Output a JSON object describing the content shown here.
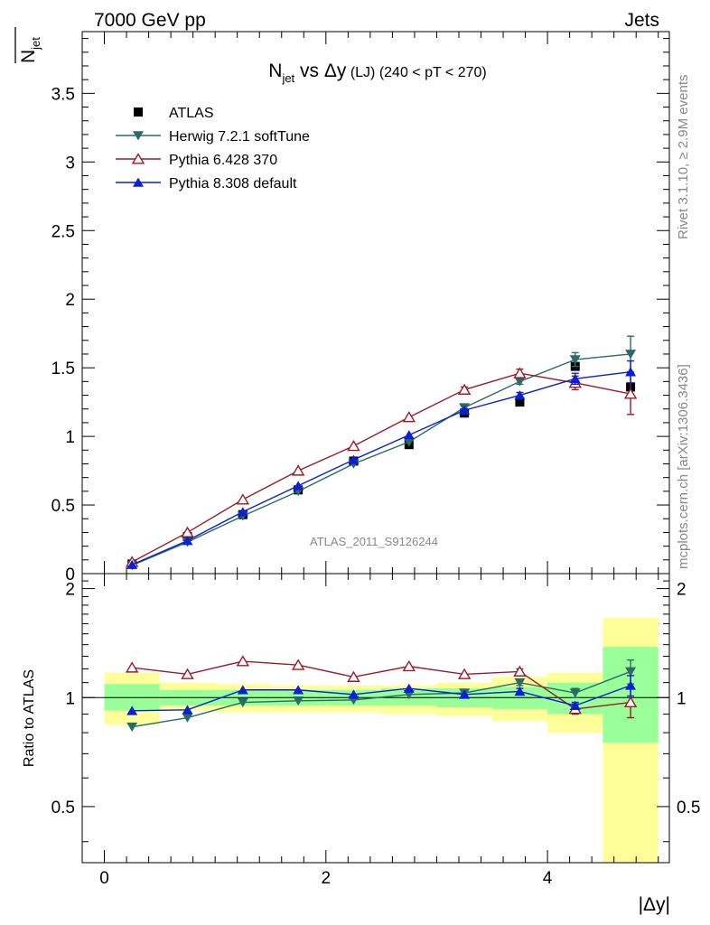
{
  "header": {
    "left": "7000 GeV pp",
    "right": "Jets"
  },
  "side_labels": {
    "rivet": "Rivet 3.1.10, ≥ 2.9M events",
    "mcplots": "mcplots.cern.ch [arXiv:1306.3436]"
  },
  "chart_data": [
    {
      "type": "scatter",
      "panel": "main",
      "title": "N_jet vs Δy (LJ) (240 < pT < 270)",
      "title_parts": {
        "n": "N",
        "sub": "jet",
        "vs": " vs ",
        "dy": "Δy",
        "lj": " (LJ) ",
        "cut": "(240 < pT < 270)"
      },
      "ylabel": "N̄_jet",
      "ylabel_parts": {
        "n": "N",
        "sub": "jet"
      },
      "xlabel": "",
      "watermark": "ATLAS_2011_S9126244",
      "xlim": [
        -0.2,
        5.1
      ],
      "ylim": [
        0,
        3.95
      ],
      "yticks": [
        "0",
        "0.5",
        "1",
        "1.5",
        "2",
        "2.5",
        "3",
        "3.5"
      ],
      "legend_position": "top-left",
      "x": [
        0.25,
        0.75,
        1.25,
        1.75,
        2.25,
        2.75,
        3.25,
        3.75,
        4.25,
        4.75
      ],
      "series": [
        {
          "name": "ATLAS",
          "marker": "square",
          "color": "#000000",
          "values": [
            0.07,
            0.27,
            0.43,
            0.61,
            0.82,
            0.94,
            1.17,
            1.25,
            1.51,
            1.36
          ],
          "errors": [
            0,
            0,
            0,
            0,
            0,
            0,
            0,
            0,
            0.02,
            0.02
          ]
        },
        {
          "name": "Herwig 7.2.1 softTune",
          "marker": "triangle-down",
          "color": "#2a6b66",
          "values": [
            0.06,
            0.23,
            0.42,
            0.6,
            0.8,
            0.96,
            1.21,
            1.4,
            1.56,
            1.6
          ],
          "errors": [
            0,
            0,
            0,
            0,
            0,
            0,
            0,
            0.02,
            0.05,
            0.13
          ]
        },
        {
          "name": "Pythia 6.428 370",
          "marker": "triangle-up-open",
          "color": "#9b1b2a",
          "values": [
            0.085,
            0.3,
            0.54,
            0.75,
            0.93,
            1.14,
            1.34,
            1.46,
            1.39,
            1.31
          ],
          "errors": [
            0,
            0,
            0,
            0,
            0,
            0,
            0.02,
            0.03,
            0.05,
            0.15
          ]
        },
        {
          "name": "Pythia 8.308 default",
          "marker": "triangle-up",
          "color": "#0a1fd6",
          "values": [
            0.065,
            0.24,
            0.45,
            0.64,
            0.83,
            1.01,
            1.19,
            1.3,
            1.42,
            1.47
          ],
          "errors": [
            0,
            0,
            0,
            0,
            0,
            0,
            0.01,
            0.02,
            0.04,
            0.08
          ]
        }
      ]
    },
    {
      "type": "scatter",
      "panel": "ratio",
      "ylabel": "Ratio to ATLAS",
      "xlabel": "|Δy|",
      "xlim": [
        -0.2,
        5.1
      ],
      "ylim": [
        0.35,
        2.2
      ],
      "xticks": [
        "0",
        "2",
        "4"
      ],
      "yticks": [
        "0.5",
        "1",
        "2"
      ],
      "bands": {
        "edges": [
          0,
          0.5,
          1.0,
          1.5,
          2.0,
          2.5,
          3.0,
          3.5,
          4.0,
          4.5,
          5.0
        ],
        "yellow": [
          [
            0.84,
            1.17
          ],
          [
            0.92,
            1.1
          ],
          [
            0.91,
            1.09
          ],
          [
            0.91,
            1.08
          ],
          [
            0.91,
            1.08
          ],
          [
            0.9,
            1.08
          ],
          [
            0.89,
            1.1
          ],
          [
            0.86,
            1.14
          ],
          [
            0.8,
            1.17
          ],
          [
            0.35,
            1.66
          ]
        ],
        "green": [
          [
            0.92,
            1.09
          ],
          [
            0.95,
            1.05
          ],
          [
            0.95,
            1.05
          ],
          [
            0.95,
            1.05
          ],
          [
            0.95,
            1.05
          ],
          [
            0.95,
            1.06
          ],
          [
            0.94,
            1.06
          ],
          [
            0.93,
            1.07
          ],
          [
            0.9,
            1.1
          ],
          [
            0.75,
            1.38
          ]
        ]
      },
      "x": [
        0.25,
        0.75,
        1.25,
        1.75,
        2.25,
        2.75,
        3.25,
        3.75,
        4.25,
        4.75
      ],
      "series": [
        {
          "name": "Herwig 7.2.1 softTune",
          "marker": "triangle-down",
          "color": "#2a6b66",
          "values": [
            0.83,
            0.88,
            0.97,
            0.98,
            0.985,
            1.02,
            1.03,
            1.1,
            1.03,
            1.18
          ],
          "errors": [
            0,
            0,
            0,
            0,
            0,
            0,
            0,
            0.02,
            0.03,
            0.09
          ]
        },
        {
          "name": "Pythia 6.428 370",
          "marker": "triangle-up-open",
          "color": "#9b1b2a",
          "values": [
            1.21,
            1.16,
            1.26,
            1.23,
            1.14,
            1.22,
            1.16,
            1.18,
            0.93,
            0.97
          ],
          "errors": [
            0,
            0,
            0,
            0,
            0,
            0,
            0,
            0.02,
            0.03,
            0.09
          ]
        },
        {
          "name": "Pythia 8.308 default",
          "marker": "triangle-up",
          "color": "#0a1fd6",
          "values": [
            0.92,
            0.925,
            1.05,
            1.05,
            1.02,
            1.06,
            1.02,
            1.04,
            0.95,
            1.08
          ],
          "errors": [
            0,
            0,
            0,
            0,
            0,
            0,
            0,
            0.02,
            0.02,
            0.07
          ]
        }
      ]
    }
  ]
}
